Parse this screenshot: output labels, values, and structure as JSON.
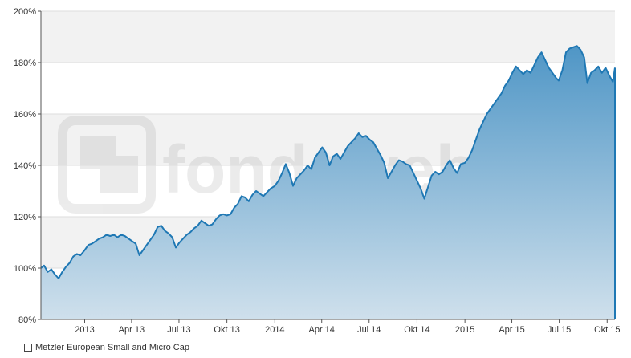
{
  "watermark": "fondsweb.de",
  "legend": {
    "label": "Metzler European Small and Micro Cap"
  },
  "colors": {
    "line": "#1f78b4",
    "fill_top": "#4f96c6",
    "fill_bottom": "#cfe0ec",
    "band": "#f2f2f2"
  },
  "chart_data": {
    "type": "area",
    "title": "",
    "xlabel": "",
    "ylabel": "",
    "ylim": [
      80,
      200
    ],
    "yticks": [
      80,
      100,
      120,
      140,
      160,
      180,
      200
    ],
    "ytick_suffix": "%",
    "grid": true,
    "legend_position": "bottom-left",
    "xticks": [
      {
        "label": "2013",
        "date": "2013-01-01"
      },
      {
        "label": "Apr 13",
        "date": "2013-04-01"
      },
      {
        "label": "Jul 13",
        "date": "2013-07-01"
      },
      {
        "label": "Okt 13",
        "date": "2013-10-01"
      },
      {
        "label": "2014",
        "date": "2014-01-01"
      },
      {
        "label": "Apr 14",
        "date": "2014-04-01"
      },
      {
        "label": "Jul 14",
        "date": "2014-07-01"
      },
      {
        "label": "Okt 14",
        "date": "2014-10-01"
      },
      {
        "label": "2015",
        "date": "2015-01-01"
      },
      {
        "label": "Apr 15",
        "date": "2015-04-01"
      },
      {
        "label": "Jul 15",
        "date": "2015-07-01"
      },
      {
        "label": "Okt 15",
        "date": "2015-10-01"
      }
    ],
    "series": [
      {
        "name": "Metzler European Small and Micro Cap",
        "points": [
          [
            "2012-10-09",
            100
          ],
          [
            "2012-10-15",
            101
          ],
          [
            "2012-10-22",
            98.5
          ],
          [
            "2012-10-29",
            99.5
          ],
          [
            "2012-11-05",
            97.5
          ],
          [
            "2012-11-12",
            96
          ],
          [
            "2012-11-19",
            98.5
          ],
          [
            "2012-11-26",
            100.5
          ],
          [
            "2012-12-03",
            102
          ],
          [
            "2012-12-10",
            104.5
          ],
          [
            "2012-12-17",
            105.5
          ],
          [
            "2012-12-24",
            105
          ],
          [
            "2013-01-01",
            107
          ],
          [
            "2013-01-08",
            109
          ],
          [
            "2013-01-15",
            109.5
          ],
          [
            "2013-01-22",
            110.5
          ],
          [
            "2013-01-29",
            111.5
          ],
          [
            "2013-02-05",
            112
          ],
          [
            "2013-02-12",
            113
          ],
          [
            "2013-02-19",
            112.5
          ],
          [
            "2013-02-26",
            113
          ],
          [
            "2013-03-05",
            112
          ],
          [
            "2013-03-12",
            113
          ],
          [
            "2013-03-19",
            112.5
          ],
          [
            "2013-03-26",
            111.5
          ],
          [
            "2013-04-02",
            110.5
          ],
          [
            "2013-04-09",
            109.5
          ],
          [
            "2013-04-16",
            105
          ],
          [
            "2013-04-23",
            107
          ],
          [
            "2013-04-30",
            109
          ],
          [
            "2013-05-07",
            111
          ],
          [
            "2013-05-14",
            113
          ],
          [
            "2013-05-21",
            116
          ],
          [
            "2013-05-28",
            116.5
          ],
          [
            "2013-06-04",
            114.5
          ],
          [
            "2013-06-11",
            113.5
          ],
          [
            "2013-06-18",
            112
          ],
          [
            "2013-06-25",
            108
          ],
          [
            "2013-07-02",
            110
          ],
          [
            "2013-07-09",
            111.5
          ],
          [
            "2013-07-16",
            113
          ],
          [
            "2013-07-23",
            114
          ],
          [
            "2013-07-30",
            115.5
          ],
          [
            "2013-08-06",
            116.5
          ],
          [
            "2013-08-13",
            118.5
          ],
          [
            "2013-08-20",
            117.5
          ],
          [
            "2013-08-27",
            116.5
          ],
          [
            "2013-09-03",
            117
          ],
          [
            "2013-09-10",
            119
          ],
          [
            "2013-09-17",
            120.5
          ],
          [
            "2013-09-24",
            121
          ],
          [
            "2013-10-01",
            120.5
          ],
          [
            "2013-10-08",
            121
          ],
          [
            "2013-10-15",
            123.5
          ],
          [
            "2013-10-22",
            125
          ],
          [
            "2013-10-29",
            128
          ],
          [
            "2013-11-05",
            127.5
          ],
          [
            "2013-11-12",
            126
          ],
          [
            "2013-11-19",
            128.5
          ],
          [
            "2013-11-26",
            130
          ],
          [
            "2013-12-03",
            129
          ],
          [
            "2013-12-10",
            128
          ],
          [
            "2013-12-17",
            129.5
          ],
          [
            "2013-12-24",
            131
          ],
          [
            "2014-01-01",
            132
          ],
          [
            "2014-01-08",
            134
          ],
          [
            "2014-01-15",
            137
          ],
          [
            "2014-01-22",
            140.5
          ],
          [
            "2014-01-29",
            137
          ],
          [
            "2014-02-05",
            132
          ],
          [
            "2014-02-12",
            135
          ],
          [
            "2014-02-19",
            136.5
          ],
          [
            "2014-02-26",
            138
          ],
          [
            "2014-03-05",
            140
          ],
          [
            "2014-03-12",
            138.5
          ],
          [
            "2014-03-19",
            143
          ],
          [
            "2014-03-26",
            145
          ],
          [
            "2014-04-02",
            147
          ],
          [
            "2014-04-09",
            145
          ],
          [
            "2014-04-16",
            140
          ],
          [
            "2014-04-23",
            143.5
          ],
          [
            "2014-04-30",
            144.5
          ],
          [
            "2014-05-07",
            142.5
          ],
          [
            "2014-05-14",
            145
          ],
          [
            "2014-05-21",
            147.5
          ],
          [
            "2014-05-28",
            149
          ],
          [
            "2014-06-04",
            150.5
          ],
          [
            "2014-06-11",
            152.5
          ],
          [
            "2014-06-18",
            151
          ],
          [
            "2014-06-25",
            151.5
          ],
          [
            "2014-07-02",
            150
          ],
          [
            "2014-07-09",
            149
          ],
          [
            "2014-07-16",
            146.5
          ],
          [
            "2014-07-23",
            144
          ],
          [
            "2014-07-30",
            141
          ],
          [
            "2014-08-06",
            135
          ],
          [
            "2014-08-13",
            137.5
          ],
          [
            "2014-08-20",
            140
          ],
          [
            "2014-08-27",
            142
          ],
          [
            "2014-09-03",
            141.5
          ],
          [
            "2014-09-10",
            140.5
          ],
          [
            "2014-09-17",
            140
          ],
          [
            "2014-09-24",
            137
          ],
          [
            "2014-10-01",
            134
          ],
          [
            "2014-10-08",
            131
          ],
          [
            "2014-10-15",
            127
          ],
          [
            "2014-10-22",
            131.5
          ],
          [
            "2014-10-29",
            136
          ],
          [
            "2014-11-05",
            137.5
          ],
          [
            "2014-11-12",
            136.5
          ],
          [
            "2014-11-19",
            137.5
          ],
          [
            "2014-11-26",
            140
          ],
          [
            "2014-12-03",
            142
          ],
          [
            "2014-12-10",
            139
          ],
          [
            "2014-12-17",
            137
          ],
          [
            "2014-12-24",
            140.5
          ],
          [
            "2015-01-01",
            141
          ],
          [
            "2015-01-08",
            143
          ],
          [
            "2015-01-15",
            146
          ],
          [
            "2015-01-22",
            150
          ],
          [
            "2015-01-29",
            154
          ],
          [
            "2015-02-05",
            157
          ],
          [
            "2015-02-12",
            160
          ],
          [
            "2015-02-19",
            162
          ],
          [
            "2015-02-26",
            164
          ],
          [
            "2015-03-05",
            166
          ],
          [
            "2015-03-12",
            168
          ],
          [
            "2015-03-19",
            171
          ],
          [
            "2015-03-26",
            173
          ],
          [
            "2015-04-02",
            176
          ],
          [
            "2015-04-09",
            178.5
          ],
          [
            "2015-04-16",
            177
          ],
          [
            "2015-04-23",
            175.5
          ],
          [
            "2015-04-30",
            177
          ],
          [
            "2015-05-07",
            176
          ],
          [
            "2015-05-14",
            179
          ],
          [
            "2015-05-21",
            182
          ],
          [
            "2015-05-28",
            184
          ],
          [
            "2015-06-04",
            181
          ],
          [
            "2015-06-11",
            178
          ],
          [
            "2015-06-18",
            176
          ],
          [
            "2015-06-25",
            174
          ],
          [
            "2015-06-30",
            173
          ],
          [
            "2015-07-07",
            177
          ],
          [
            "2015-07-14",
            184
          ],
          [
            "2015-07-21",
            185.5
          ],
          [
            "2015-07-28",
            186
          ],
          [
            "2015-08-04",
            186.5
          ],
          [
            "2015-08-11",
            185
          ],
          [
            "2015-08-18",
            182
          ],
          [
            "2015-08-24",
            172
          ],
          [
            "2015-08-31",
            176
          ],
          [
            "2015-09-07",
            177
          ],
          [
            "2015-09-14",
            178.5
          ],
          [
            "2015-09-21",
            176
          ],
          [
            "2015-09-28",
            178
          ],
          [
            "2015-10-05",
            175
          ],
          [
            "2015-10-12",
            172.5
          ],
          [
            "2015-10-16",
            178
          ]
        ]
      }
    ]
  }
}
